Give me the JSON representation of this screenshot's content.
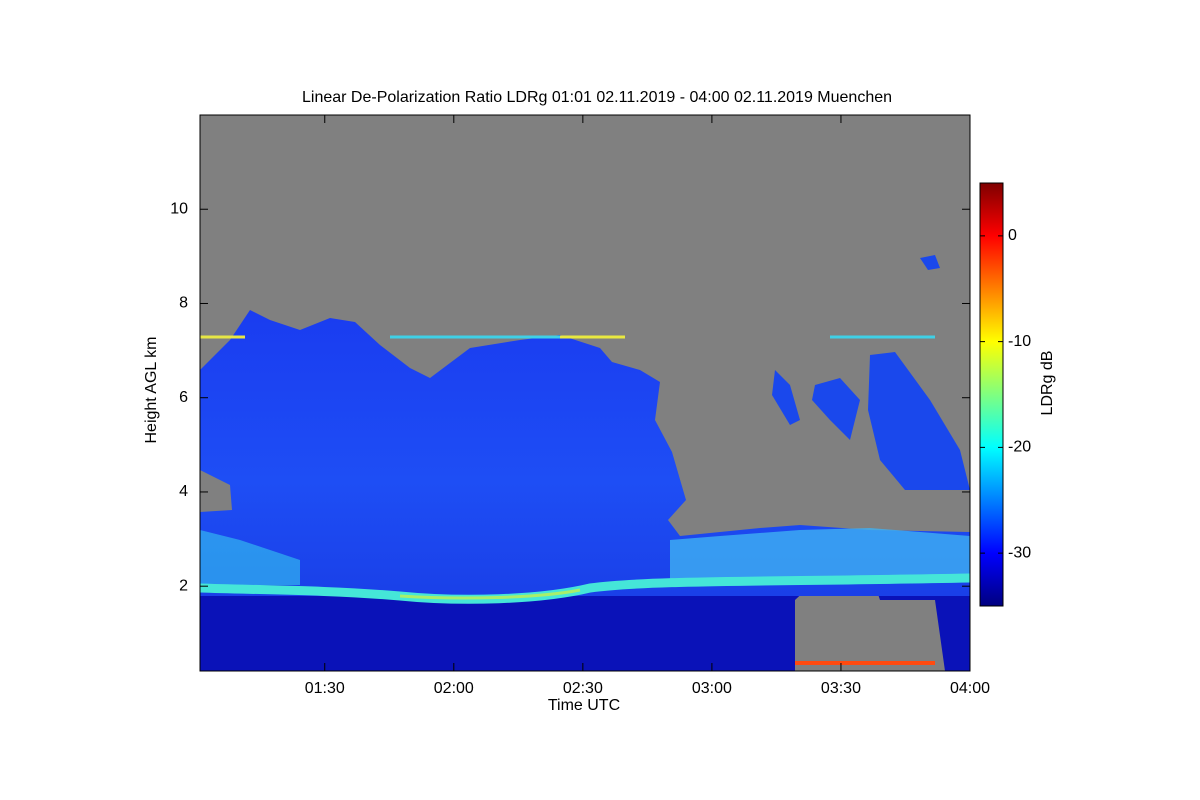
{
  "chart_data": {
    "type": "heatmap",
    "title": "Linear De-Polarization Ratio LDRg   01:01 02.11.2019 - 04:00 02.11.2019 Muenchen",
    "x_label": "Time UTC",
    "y_label": "Height AGL km",
    "xlim": [
      "01:01",
      "04:00"
    ],
    "xticks": [
      "01:30",
      "02:00",
      "02:30",
      "03:00",
      "03:30",
      "04:00"
    ],
    "ylim": [
      0.2,
      12
    ],
    "yticks": [
      2,
      4,
      6,
      8,
      10
    ],
    "colorbar": {
      "label": "LDRg dB",
      "colormap": "jet",
      "lim": [
        -35,
        5
      ],
      "ticks": [
        -30,
        -20,
        -10,
        0
      ]
    }
  }
}
